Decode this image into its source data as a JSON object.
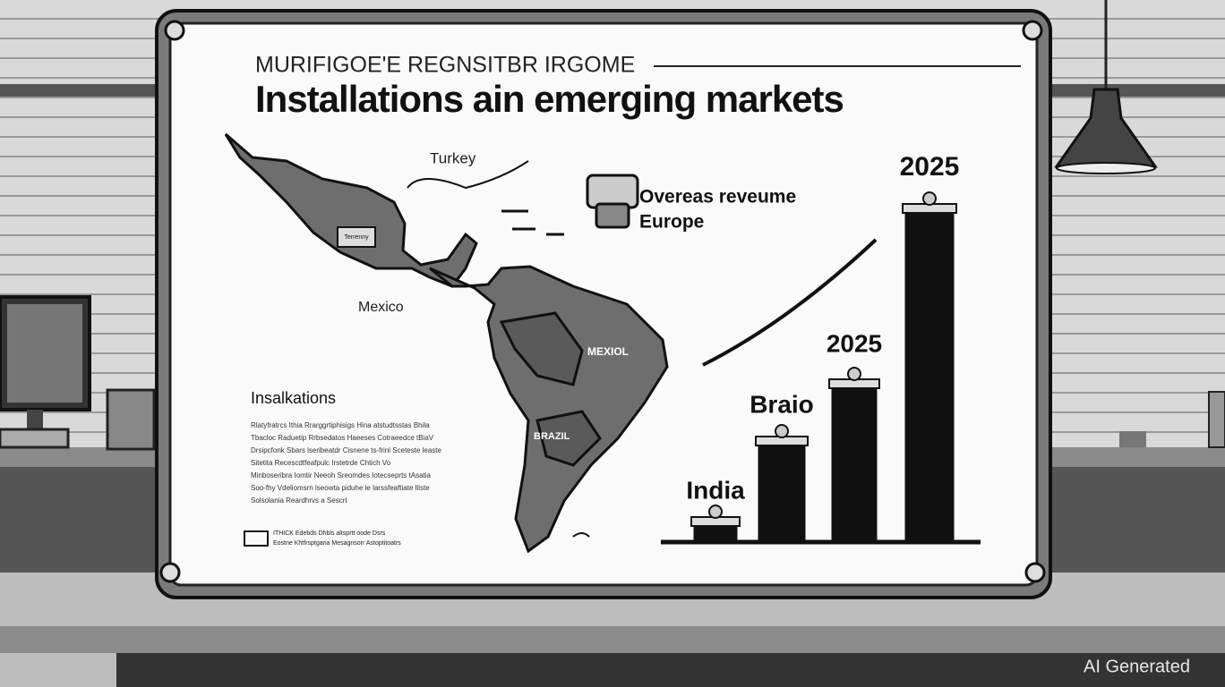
{
  "board": {
    "kicker": "MURIFIGOE'E REGNSITBR IRGOME",
    "title": "Installations ain emerging markets",
    "map_labels": {
      "turkey": "Turkey",
      "mexico": "Mexico",
      "tag": "Terrenny",
      "mexiol": "MEXIOL",
      "brazil": "BRAZIL"
    },
    "callout": {
      "line1": "Overeas reveume",
      "line2": "Europe"
    },
    "notes": {
      "heading": "Insalkations",
      "lines": [
        "Rlatyfratrcs Ithia Rrarggrtiphisigs Hina atstudtsstas Bhila",
        "Tbacloc  Raduetip  Rrbsedatos  Haeeses  Cotraeedce  tBiaV",
        "Drsipcfonk Sbars lseribeatdr  Cisnene  ts-frinl  Sceteste leaste",
        "Sitetita  Recescdtfeafpulc  Irstetrde  Chtich  Vo",
        "Minboseribra  Iomtir  Neeoh  Sreomdes  Iotecseprts  tAsatia",
        "Soo-fhy  Vdeliomsrn  lseowta piduhe  le  larssfeaftiate  lliste",
        "Solsolania  Reardhrvs  a  Sescrt"
      ],
      "footer1": "ITHICK  Edebds  Dhbls  altsprtt oode Dsrs",
      "footer2": "Eostne  Khtfrsptgaria  Mesagnsorr  Astoptitoatrs"
    },
    "bar_labels": [
      "India",
      "Braio",
      "2025",
      "2025"
    ]
  },
  "watermark": "AI Generated"
}
